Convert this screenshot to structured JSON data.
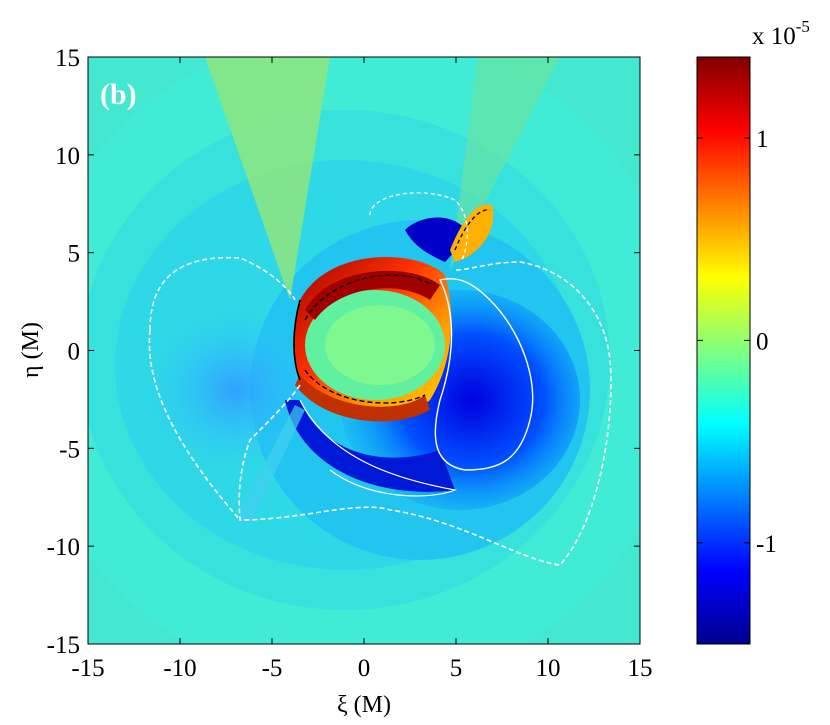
{
  "chart_data": {
    "type": "heatmap",
    "panel_label": "(b)",
    "xlabel": "ξ (M)",
    "ylabel": "η (M)",
    "xlim": [
      -15,
      15
    ],
    "ylim": [
      -15,
      15
    ],
    "x_ticks": [
      -15,
      -10,
      -5,
      0,
      5,
      10,
      15
    ],
    "y_ticks": [
      -15,
      -10,
      -5,
      0,
      5,
      10,
      15
    ],
    "colorbar": {
      "multiplier_text": "x 10",
      "multiplier_exponent": "-5",
      "range": [
        -1.5,
        1.4
      ],
      "ticks": [
        -1,
        0,
        1
      ],
      "tick_labels": [
        "-1",
        "0",
        "1"
      ],
      "colormap": "jet"
    },
    "background_value": -0.2,
    "wedge_value": 0.15,
    "colors": {
      "jet_min": "#00008f",
      "jet_blue": "#0000ff",
      "jet_cyan": "#00ffff",
      "jet_yellow": "#ffff00",
      "jet_red": "#ff0000",
      "jet_max": "#800000",
      "contour": "#ffffff",
      "contour_inner": "#000000"
    }
  }
}
